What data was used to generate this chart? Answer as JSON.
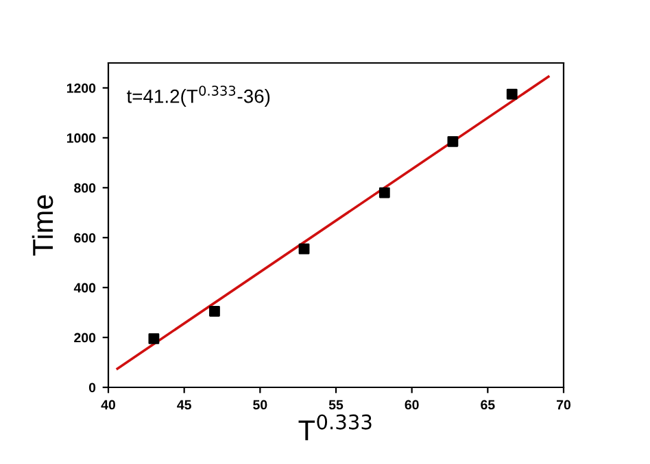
{
  "chart_data": {
    "type": "scatter",
    "xlabel": "T$^{0.333}$",
    "ylabel": "Time",
    "annotations": [
      "t=41.2(T$^{0.333}$-36)"
    ],
    "xlim": [
      40,
      70
    ],
    "xticks": [
      40,
      45,
      50,
      55,
      60,
      65,
      70
    ],
    "ylim": [
      0,
      1300
    ],
    "yticks": [
      0,
      200,
      400,
      600,
      800,
      1000,
      1200
    ],
    "grid": false,
    "series": [
      {
        "color": "#000000",
        "marker": "square",
        "x": [
          43,
          47,
          52.9,
          58.2,
          62.7,
          66.6
        ],
        "values": [
          195,
          305,
          555,
          780,
          985,
          1175
        ]
      },
      {
        "type": "line",
        "color": "#d01010",
        "marker": "none",
        "x": [
          40.6,
          69
        ],
        "values": [
          75,
          1245
        ]
      }
    ]
  }
}
